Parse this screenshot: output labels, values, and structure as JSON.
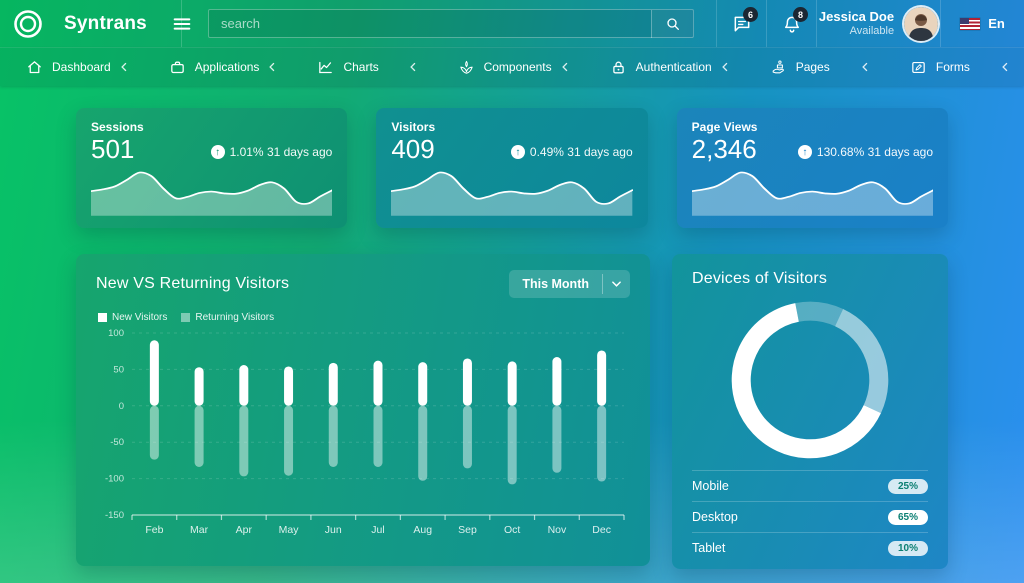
{
  "topbar": {
    "brand": "Syntrans",
    "search_placeholder": "search",
    "chat_badge": "6",
    "bell_badge": "8",
    "user_name": "Jessica Doe",
    "user_status": "Available",
    "language": "En"
  },
  "navbar": {
    "items": [
      {
        "label": "Dashboard"
      },
      {
        "label": "Applications"
      },
      {
        "label": "Charts"
      },
      {
        "label": "Components"
      },
      {
        "label": "Authentication"
      },
      {
        "label": "Pages"
      },
      {
        "label": "Forms"
      }
    ]
  },
  "stats": [
    {
      "title": "Sessions",
      "value": "501",
      "delta": "1.01% 31 days ago"
    },
    {
      "title": "Visitors",
      "value": "409",
      "delta": "0.49% 31 days ago"
    },
    {
      "title": "Page Views",
      "value": "2,346",
      "delta": "130.68% 31 days ago"
    }
  ],
  "visitors_card": {
    "title": "New VS Returning Visitors",
    "range_button": "This Month",
    "legend": [
      {
        "label": "New Visitors"
      },
      {
        "label": "Returning Visitors"
      }
    ]
  },
  "devices_card": {
    "title": "Devices of Visitors",
    "rows": [
      {
        "label": "Mobile",
        "value": "25%"
      },
      {
        "label": "Desktop",
        "value": "65%"
      },
      {
        "label": "Tablet",
        "value": "10%"
      }
    ]
  },
  "colors": {
    "bar_new": "#ffffff",
    "bar_returning": "rgba(255,255,255,0.45)",
    "donut_mobile": "rgba(255,255,255,0.55)",
    "donut_desktop": "#ffffff",
    "donut_tablet": "rgba(255,255,255,0.28)",
    "badge_bg": "#1b2733"
  },
  "chart_data": [
    {
      "type": "bar",
      "title": "New VS Returning Visitors",
      "categories": [
        "Feb",
        "Mar",
        "Apr",
        "May",
        "Jun",
        "Jul",
        "Aug",
        "Sep",
        "Oct",
        "Nov",
        "Dec"
      ],
      "series": [
        {
          "name": "New Visitors",
          "values": [
            90,
            53,
            56,
            54,
            59,
            62,
            60,
            65,
            61,
            67,
            76
          ]
        },
        {
          "name": "Returning Visitors",
          "values": [
            -74,
            -84,
            -97,
            -96,
            -84,
            -84,
            -103,
            -86,
            -108,
            -92,
            -104
          ]
        }
      ],
      "ylim": [
        -150,
        100
      ],
      "yticks": [
        100,
        50,
        0,
        -50,
        -100,
        -150
      ],
      "grid": "dashed",
      "legend_position": "top-left"
    },
    {
      "type": "pie",
      "title": "Devices of Visitors",
      "donut": true,
      "labels": [
        "Mobile",
        "Desktop",
        "Tablet"
      ],
      "values": [
        25,
        65,
        10
      ],
      "start_angle_deg": -65
    },
    {
      "type": "area",
      "title": "stat-card sparkline (shared shape, unlabeled axes)",
      "values": [
        46,
        50,
        57,
        72,
        88,
        80,
        52,
        30,
        33,
        42,
        45,
        41,
        40,
        47,
        60,
        66,
        52,
        22,
        18,
        34,
        48
      ]
    }
  ]
}
